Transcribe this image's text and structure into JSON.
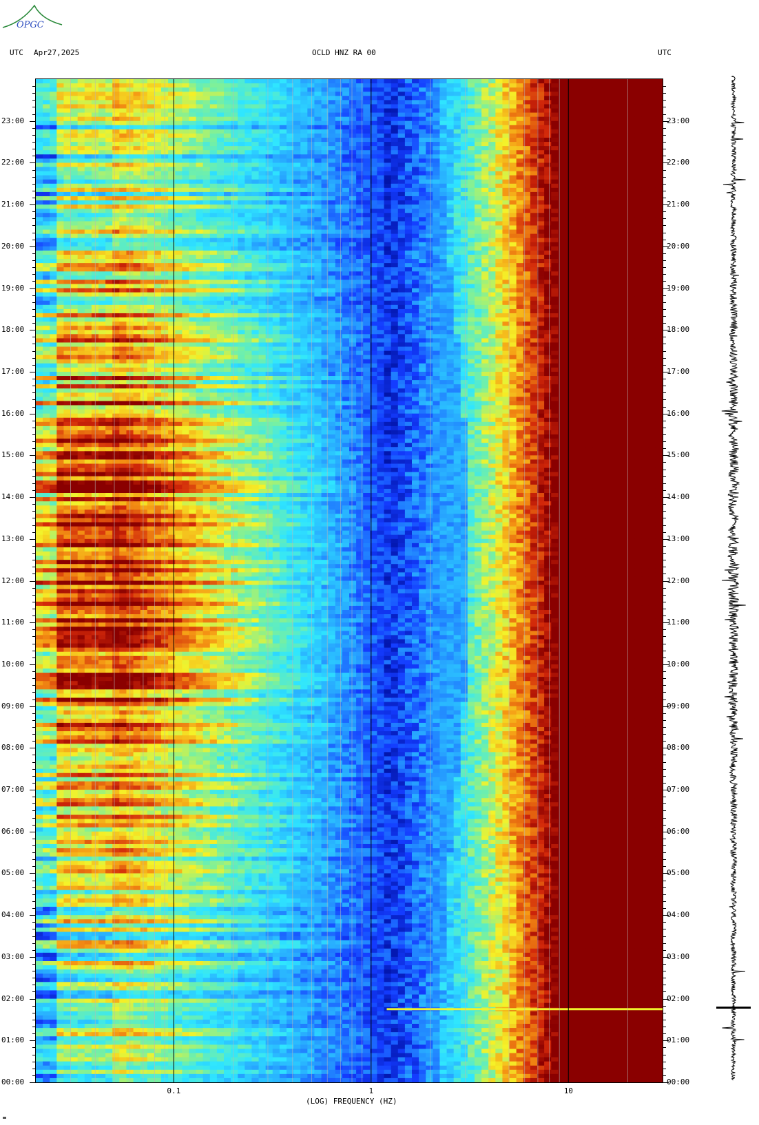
{
  "header": {
    "logo_text": "OPGC",
    "left_tz": "UTC",
    "date": "Apr27,2025",
    "station": "OCLD HNZ RA 00",
    "right_tz": "UTC"
  },
  "footer": {
    "xlabel": "(LOG) FREQUENCY (HZ)"
  },
  "colors": {
    "low": "#0010a0",
    "mid_low": "#1a4fff",
    "mid": "#2fd9ff",
    "mid_high": "#f5f228",
    "high": "#f07a10",
    "max": "#8a0000"
  },
  "chart_data": {
    "type": "heatmap",
    "title": "OCLD HNZ RA 00",
    "xlabel": "(LOG) FREQUENCY (HZ)",
    "ylabel": "UTC",
    "x_scale": "log",
    "xlim_hz": [
      0.02,
      30
    ],
    "x_ticks": [
      {
        "value": 0.1,
        "label": "0.1"
      },
      {
        "value": 1,
        "label": "1"
      },
      {
        "value": 10,
        "label": "10"
      }
    ],
    "y_ticks_utc": [
      "00:00",
      "01:00",
      "02:00",
      "03:00",
      "04:00",
      "05:00",
      "06:00",
      "07:00",
      "08:00",
      "09:00",
      "10:00",
      "11:00",
      "12:00",
      "13:00",
      "14:00",
      "15:00",
      "16:00",
      "17:00",
      "18:00",
      "19:00",
      "20:00",
      "21:00",
      "22:00",
      "23:00"
    ],
    "ylim_hours": [
      0,
      24
    ],
    "description_bands": [
      {
        "freq_range_hz": [
          0.02,
          0.1
        ],
        "level": "high (yellow-red), strongest 08:00-18:00"
      },
      {
        "freq_range_hz": [
          0.1,
          1.5
        ],
        "level": "low (blue)"
      },
      {
        "freq_range_hz": [
          3,
          10
        ],
        "level": "rising (cyan-yellow-red)"
      },
      {
        "freq_range_hz": [
          10,
          30
        ],
        "level": "max (dark red)"
      }
    ],
    "notable_event_utc": "01:45"
  }
}
